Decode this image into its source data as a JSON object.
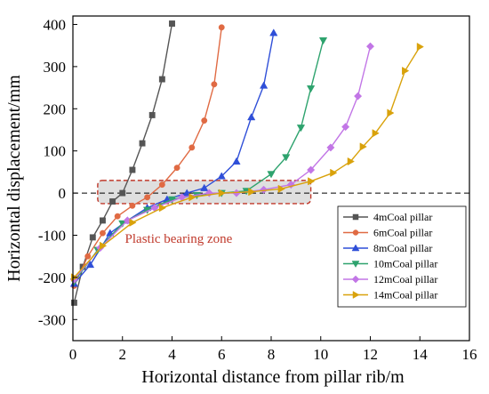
{
  "chart_data": {
    "type": "line",
    "title": "",
    "xlabel": "Horizontal distance from pillar rib/m",
    "ylabel": "Horizontal displacement/mm",
    "xlim": [
      0,
      16
    ],
    "ylim": [
      -350,
      420
    ],
    "xticks": [
      0,
      2,
      4,
      6,
      8,
      10,
      12,
      14,
      16
    ],
    "yticks": [
      -300,
      -200,
      -100,
      0,
      100,
      200,
      300,
      400
    ],
    "grid": false,
    "legend_position": "bottom-right",
    "reference_line_y": 0,
    "annotation": {
      "text": "Plastic bearing zone",
      "color": "#c0392b",
      "x_range": [
        1.0,
        9.6
      ],
      "y_range": [
        -25,
        30
      ]
    },
    "series": [
      {
        "name": "4mCoal pillar",
        "color": "#555555",
        "marker": "square",
        "x": [
          0.05,
          0.4,
          0.8,
          1.2,
          1.6,
          2.0,
          2.4,
          2.8,
          3.2,
          3.6,
          4.0
        ],
        "y": [
          -260,
          -175,
          -105,
          -65,
          -20,
          0,
          55,
          118,
          185,
          270,
          402
        ]
      },
      {
        "name": "6mCoal pillar",
        "color": "#e06a43",
        "marker": "circle",
        "x": [
          0.05,
          0.6,
          1.2,
          1.8,
          2.4,
          3.0,
          3.6,
          4.2,
          4.8,
          5.3,
          5.7,
          6.0
        ],
        "y": [
          -220,
          -150,
          -95,
          -55,
          -30,
          -10,
          20,
          60,
          108,
          172,
          258,
          393
        ]
      },
      {
        "name": "8mCoal pillar",
        "color": "#2f4fd8",
        "marker": "triangle-up",
        "x": [
          0.05,
          0.7,
          1.5,
          2.2,
          3.0,
          3.8,
          4.6,
          5.3,
          6.0,
          6.6,
          7.2,
          7.7,
          8.1
        ],
        "y": [
          -215,
          -170,
          -95,
          -65,
          -35,
          -15,
          0,
          12,
          40,
          75,
          180,
          255,
          380
        ]
      },
      {
        "name": "10mCoal pillar",
        "color": "#2ea36e",
        "marker": "triangle-down",
        "x": [
          0.05,
          1.0,
          2.0,
          3.0,
          4.0,
          5.0,
          6.0,
          7.0,
          8.0,
          8.6,
          9.2,
          9.6,
          10.1
        ],
        "y": [
          -210,
          -135,
          -72,
          -40,
          -15,
          -5,
          0,
          5,
          45,
          85,
          155,
          248,
          362
        ]
      },
      {
        "name": "12mCoal pillar",
        "color": "#c276e6",
        "marker": "diamond",
        "x": [
          0.05,
          1.1,
          2.2,
          3.3,
          4.4,
          5.5,
          6.6,
          7.7,
          8.8,
          9.6,
          10.4,
          11.0,
          11.5,
          12.0
        ],
        "y": [
          -205,
          -130,
          -65,
          -35,
          -10,
          0,
          0,
          8,
          20,
          55,
          108,
          157,
          230,
          348
        ]
      },
      {
        "name": "14mCoal pillar",
        "color": "#d9a20b",
        "marker": "triangle-right",
        "x": [
          0.05,
          1.2,
          2.4,
          3.6,
          4.8,
          6.0,
          7.2,
          8.4,
          9.6,
          10.5,
          11.2,
          11.7,
          12.2,
          12.8,
          13.4,
          14.0
        ],
        "y": [
          -200,
          -125,
          -70,
          -35,
          -10,
          0,
          3,
          10,
          28,
          48,
          75,
          110,
          142,
          190,
          290,
          347
        ]
      }
    ]
  }
}
